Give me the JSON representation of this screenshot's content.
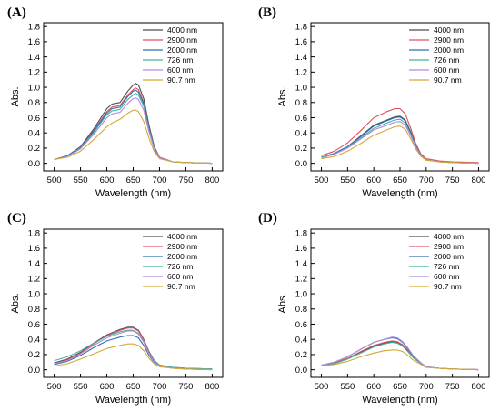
{
  "figure": {
    "series_names": [
      "4000 nm",
      "2900 nm",
      "2000 nm",
      "726 nm",
      "600 nm",
      "90.7 nm"
    ],
    "series_colors": [
      "#4d4d4d",
      "#e0505c",
      "#2f6fb5",
      "#45b39c",
      "#b48be0",
      "#d4a933"
    ]
  },
  "chart_data": [
    {
      "panel": "(A)",
      "type": "line",
      "xlabel": "Wavelength (nm)",
      "ylabel": "Abs.",
      "xlim": [
        480,
        820
      ],
      "ylim": [
        -0.1,
        1.85
      ],
      "xticks": [
        500,
        550,
        600,
        650,
        700,
        750,
        800
      ],
      "yticks": [
        0.0,
        0.2,
        0.4,
        0.6,
        0.8,
        1.0,
        1.2,
        1.4,
        1.6,
        1.8
      ],
      "legend_position": "top-right",
      "x": [
        500,
        525,
        550,
        575,
        600,
        610,
        625,
        640,
        650,
        655,
        660,
        670,
        680,
        690,
        700,
        725,
        750,
        800
      ],
      "series": [
        {
          "name": "4000 nm",
          "color": "#4d4d4d",
          "values": [
            0.05,
            0.1,
            0.22,
            0.45,
            0.72,
            0.78,
            0.8,
            0.95,
            1.03,
            1.05,
            1.03,
            0.85,
            0.5,
            0.22,
            0.08,
            0.02,
            0.01,
            0.0
          ]
        },
        {
          "name": "2900 nm",
          "color": "#e0505c",
          "values": [
            0.05,
            0.1,
            0.21,
            0.43,
            0.68,
            0.74,
            0.76,
            0.9,
            0.97,
            0.99,
            0.97,
            0.8,
            0.47,
            0.21,
            0.08,
            0.02,
            0.01,
            0.0
          ]
        },
        {
          "name": "2000 nm",
          "color": "#2f6fb5",
          "values": [
            0.05,
            0.1,
            0.21,
            0.42,
            0.66,
            0.72,
            0.74,
            0.88,
            0.95,
            0.96,
            0.94,
            0.78,
            0.46,
            0.2,
            0.07,
            0.02,
            0.01,
            0.0
          ]
        },
        {
          "name": "726 nm",
          "color": "#45b39c",
          "values": [
            0.05,
            0.09,
            0.2,
            0.4,
            0.64,
            0.69,
            0.71,
            0.84,
            0.9,
            0.92,
            0.9,
            0.75,
            0.44,
            0.19,
            0.07,
            0.02,
            0.01,
            0.0
          ]
        },
        {
          "name": "600 nm",
          "color": "#b48be0",
          "values": [
            0.05,
            0.09,
            0.19,
            0.38,
            0.6,
            0.65,
            0.67,
            0.79,
            0.85,
            0.86,
            0.84,
            0.7,
            0.41,
            0.18,
            0.07,
            0.02,
            0.01,
            0.0
          ]
        },
        {
          "name": "90.7 nm",
          "color": "#d4a933",
          "values": [
            0.05,
            0.08,
            0.16,
            0.31,
            0.48,
            0.53,
            0.58,
            0.66,
            0.7,
            0.7,
            0.68,
            0.55,
            0.33,
            0.15,
            0.06,
            0.02,
            0.01,
            0.0
          ]
        }
      ]
    },
    {
      "panel": "(B)",
      "type": "line",
      "xlabel": "Wavelength (nm)",
      "ylabel": "Abs.",
      "xlim": [
        480,
        820
      ],
      "ylim": [
        -0.1,
        1.85
      ],
      "xticks": [
        500,
        550,
        600,
        650,
        700,
        750,
        800
      ],
      "yticks": [
        0.0,
        0.2,
        0.4,
        0.6,
        0.8,
        1.0,
        1.2,
        1.4,
        1.6,
        1.8
      ],
      "legend_position": "top-right",
      "x": [
        500,
        525,
        550,
        575,
        600,
        625,
        640,
        650,
        660,
        670,
        680,
        690,
        700,
        725,
        750,
        800
      ],
      "series": [
        {
          "name": "4000 nm",
          "color": "#4d4d4d",
          "values": [
            0.08,
            0.13,
            0.22,
            0.36,
            0.5,
            0.57,
            0.61,
            0.62,
            0.57,
            0.42,
            0.24,
            0.11,
            0.05,
            0.02,
            0.01,
            0.0
          ]
        },
        {
          "name": "2900 nm",
          "color": "#e0505c",
          "values": [
            0.1,
            0.16,
            0.27,
            0.43,
            0.6,
            0.68,
            0.72,
            0.72,
            0.65,
            0.47,
            0.26,
            0.12,
            0.06,
            0.03,
            0.02,
            0.01
          ]
        },
        {
          "name": "2000 nm",
          "color": "#2f6fb5",
          "values": [
            0.08,
            0.13,
            0.22,
            0.35,
            0.49,
            0.56,
            0.6,
            0.61,
            0.56,
            0.41,
            0.23,
            0.11,
            0.05,
            0.02,
            0.01,
            0.0
          ]
        },
        {
          "name": "726 nm",
          "color": "#45b39c",
          "values": [
            0.08,
            0.12,
            0.21,
            0.33,
            0.46,
            0.53,
            0.57,
            0.58,
            0.53,
            0.39,
            0.22,
            0.1,
            0.05,
            0.02,
            0.01,
            0.0
          ]
        },
        {
          "name": "600 nm",
          "color": "#b48be0",
          "values": [
            0.07,
            0.12,
            0.2,
            0.32,
            0.44,
            0.5,
            0.54,
            0.55,
            0.5,
            0.37,
            0.21,
            0.1,
            0.05,
            0.02,
            0.01,
            0.0
          ]
        },
        {
          "name": "90.7 nm",
          "color": "#d4a933",
          "values": [
            0.06,
            0.09,
            0.16,
            0.26,
            0.37,
            0.44,
            0.48,
            0.49,
            0.45,
            0.33,
            0.19,
            0.09,
            0.04,
            0.02,
            0.01,
            0.0
          ]
        }
      ]
    },
    {
      "panel": "(C)",
      "type": "line",
      "xlabel": "Wavelength (nm)",
      "ylabel": "Abs.",
      "xlim": [
        480,
        820
      ],
      "ylim": [
        -0.1,
        1.85
      ],
      "xticks": [
        500,
        550,
        600,
        650,
        700,
        750,
        800
      ],
      "yticks": [
        0.0,
        0.2,
        0.4,
        0.6,
        0.8,
        1.0,
        1.2,
        1.4,
        1.6,
        1.8
      ],
      "legend_position": "top-right",
      "x": [
        500,
        525,
        550,
        575,
        600,
        625,
        640,
        650,
        660,
        670,
        680,
        690,
        700,
        725,
        750,
        800
      ],
      "series": [
        {
          "name": "4000 nm",
          "color": "#4d4d4d",
          "values": [
            0.09,
            0.14,
            0.23,
            0.35,
            0.46,
            0.53,
            0.56,
            0.56,
            0.52,
            0.4,
            0.24,
            0.12,
            0.06,
            0.03,
            0.02,
            0.01
          ]
        },
        {
          "name": "2900 nm",
          "color": "#e0505c",
          "values": [
            0.08,
            0.13,
            0.22,
            0.34,
            0.45,
            0.52,
            0.55,
            0.55,
            0.51,
            0.39,
            0.23,
            0.11,
            0.05,
            0.03,
            0.02,
            0.01
          ]
        },
        {
          "name": "2000 nm",
          "color": "#2f6fb5",
          "values": [
            0.07,
            0.11,
            0.19,
            0.29,
            0.38,
            0.43,
            0.45,
            0.45,
            0.42,
            0.32,
            0.19,
            0.09,
            0.05,
            0.02,
            0.01,
            0.0
          ]
        },
        {
          "name": "726 nm",
          "color": "#45b39c",
          "values": [
            0.12,
            0.17,
            0.25,
            0.35,
            0.44,
            0.5,
            0.52,
            0.52,
            0.48,
            0.37,
            0.22,
            0.11,
            0.06,
            0.03,
            0.02,
            0.01
          ]
        },
        {
          "name": "600 nm",
          "color": "#b48be0",
          "values": [
            0.08,
            0.12,
            0.21,
            0.32,
            0.42,
            0.48,
            0.51,
            0.51,
            0.47,
            0.36,
            0.21,
            0.1,
            0.05,
            0.02,
            0.01,
            0.0
          ]
        },
        {
          "name": "90.7 nm",
          "color": "#d4a933",
          "values": [
            0.05,
            0.08,
            0.14,
            0.21,
            0.28,
            0.32,
            0.34,
            0.34,
            0.32,
            0.25,
            0.15,
            0.08,
            0.04,
            0.02,
            0.01,
            0.0
          ]
        }
      ]
    },
    {
      "panel": "(D)",
      "type": "line",
      "xlabel": "Wavelength (nm)",
      "ylabel": "Abs.",
      "xlim": [
        480,
        820
      ],
      "ylim": [
        -0.1,
        1.85
      ],
      "xticks": [
        500,
        550,
        600,
        650,
        700,
        750,
        800
      ],
      "yticks": [
        0.0,
        0.2,
        0.4,
        0.6,
        0.8,
        1.0,
        1.2,
        1.4,
        1.6,
        1.8
      ],
      "legend_position": "top-right",
      "x": [
        500,
        525,
        550,
        575,
        600,
        620,
        635,
        645,
        655,
        665,
        675,
        690,
        700,
        725,
        750,
        800
      ],
      "series": [
        {
          "name": "4000 nm",
          "color": "#4d4d4d",
          "values": [
            0.06,
            0.09,
            0.15,
            0.23,
            0.31,
            0.35,
            0.37,
            0.36,
            0.32,
            0.25,
            0.17,
            0.08,
            0.04,
            0.02,
            0.01,
            0.0
          ]
        },
        {
          "name": "2900 nm",
          "color": "#e0505c",
          "values": [
            0.06,
            0.09,
            0.15,
            0.24,
            0.32,
            0.36,
            0.38,
            0.37,
            0.33,
            0.26,
            0.17,
            0.08,
            0.04,
            0.02,
            0.01,
            0.0
          ]
        },
        {
          "name": "2000 nm",
          "color": "#2f6fb5",
          "values": [
            0.06,
            0.1,
            0.17,
            0.27,
            0.36,
            0.4,
            0.42,
            0.41,
            0.36,
            0.28,
            0.18,
            0.09,
            0.04,
            0.02,
            0.01,
            0.0
          ]
        },
        {
          "name": "726 nm",
          "color": "#45b39c",
          "values": [
            0.05,
            0.08,
            0.14,
            0.22,
            0.3,
            0.34,
            0.36,
            0.35,
            0.31,
            0.24,
            0.16,
            0.08,
            0.04,
            0.02,
            0.01,
            0.0
          ]
        },
        {
          "name": "600 nm",
          "color": "#b48be0",
          "values": [
            0.06,
            0.1,
            0.17,
            0.27,
            0.36,
            0.4,
            0.43,
            0.42,
            0.37,
            0.29,
            0.19,
            0.09,
            0.04,
            0.02,
            0.01,
            0.0
          ]
        },
        {
          "name": "90.7 nm",
          "color": "#d4a933",
          "values": [
            0.05,
            0.07,
            0.11,
            0.17,
            0.22,
            0.25,
            0.26,
            0.26,
            0.24,
            0.19,
            0.13,
            0.07,
            0.03,
            0.02,
            0.01,
            0.0
          ]
        }
      ]
    }
  ]
}
